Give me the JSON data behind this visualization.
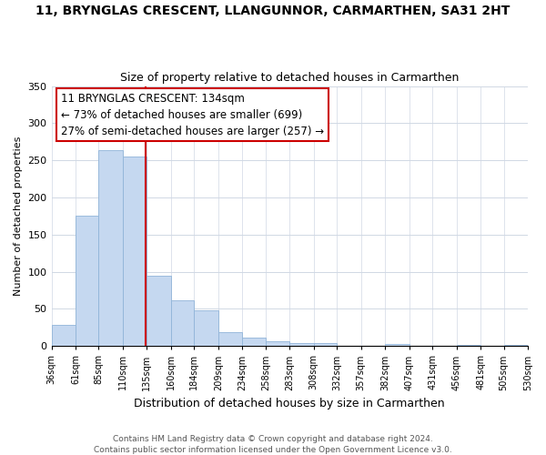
{
  "title": "11, BRYNGLAS CRESCENT, LLANGUNNOR, CARMARTHEN, SA31 2HT",
  "subtitle": "Size of property relative to detached houses in Carmarthen",
  "xlabel": "Distribution of detached houses by size in Carmarthen",
  "ylabel": "Number of detached properties",
  "bar_edges": [
    36,
    61,
    85,
    110,
    135,
    160,
    184,
    209,
    234,
    258,
    283,
    308,
    332,
    357,
    382,
    407,
    431,
    456,
    481,
    505,
    530
  ],
  "bar_heights": [
    28,
    175,
    264,
    255,
    95,
    62,
    48,
    19,
    11,
    7,
    4,
    4,
    0,
    0,
    3,
    0,
    0,
    2,
    0,
    2
  ],
  "bar_color": "#c5d8f0",
  "bar_edge_color": "#90b4d8",
  "property_line_x": 134,
  "property_line_color": "#cc0000",
  "annotation_line1": "11 BRYNGLAS CRESCENT: 134sqm",
  "annotation_line2": "← 73% of detached houses are smaller (699)",
  "annotation_line3": "27% of semi-detached houses are larger (257) →",
  "ylim": [
    0,
    350
  ],
  "yticks": [
    0,
    50,
    100,
    150,
    200,
    250,
    300,
    350
  ],
  "tick_labels": [
    "36sqm",
    "61sqm",
    "85sqm",
    "110sqm",
    "135sqm",
    "160sqm",
    "184sqm",
    "209sqm",
    "234sqm",
    "258sqm",
    "283sqm",
    "308sqm",
    "332sqm",
    "357sqm",
    "382sqm",
    "407sqm",
    "431sqm",
    "456sqm",
    "481sqm",
    "505sqm",
    "530sqm"
  ],
  "footer_line1": "Contains HM Land Registry data © Crown copyright and database right 2024.",
  "footer_line2": "Contains public sector information licensed under the Open Government Licence v3.0.",
  "background_color": "#ffffff",
  "grid_color": "#d0d8e4",
  "title_fontsize": 10,
  "subtitle_fontsize": 9,
  "xlabel_fontsize": 9,
  "ylabel_fontsize": 8,
  "tick_fontsize": 7,
  "annotation_fontsize": 8.5,
  "footer_fontsize": 6.5
}
